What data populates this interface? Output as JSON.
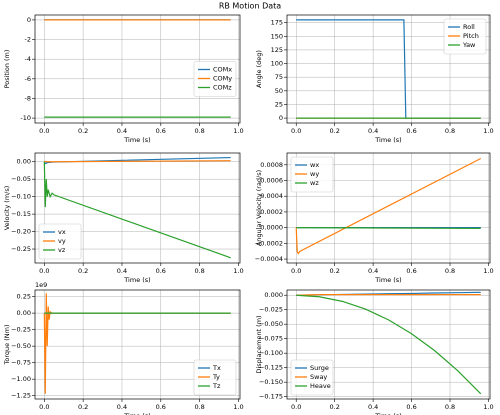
{
  "title": "RB Motion Data",
  "chart_data": [
    {
      "type": "line",
      "xlabel": "Time (s)",
      "ylabel": "Position (m)",
      "grid": true,
      "legend": "center right",
      "xlim": [
        -0.048,
        1.008
      ],
      "xticks": [
        {
          "value": 0,
          "label": "0.0"
        },
        0.2,
        0.4,
        0.6,
        0.8,
        {
          "value": 1,
          "label": "1.0"
        }
      ],
      "ylim": [
        -10.5,
        0.5
      ],
      "yticks": [
        -10,
        -8,
        -6,
        -4,
        -2,
        0
      ],
      "x": [
        0,
        0.96
      ],
      "series": [
        {
          "name": "COMx",
          "color": "#1f77b4",
          "values": [
            0,
            0
          ]
        },
        {
          "name": "COMy",
          "color": "#ff7f0e",
          "values": [
            0,
            0
          ]
        },
        {
          "name": "COMz",
          "color": "#2ca02c",
          "values": [
            -9.9,
            -9.9
          ]
        }
      ]
    },
    {
      "type": "line",
      "xlabel": "Time (s)",
      "ylabel": "Angle (deg)",
      "grid": true,
      "legend": "upper right",
      "xlim": [
        -0.048,
        1.008
      ],
      "xticks": [
        {
          "value": 0,
          "label": "0.0"
        },
        0.2,
        0.4,
        0.6,
        0.8,
        {
          "value": 1,
          "label": "1.0"
        }
      ],
      "ylim": [
        -9,
        189
      ],
      "yticks": [
        0,
        25,
        50,
        75,
        100,
        125,
        150,
        175
      ],
      "x": [
        0,
        0.56,
        0.57,
        0.96
      ],
      "series": [
        {
          "name": "Roll",
          "color": "#1f77b4",
          "values": [
            180,
            180,
            0,
            0
          ]
        },
        {
          "name": "Pitch",
          "color": "#ff7f0e",
          "values": [
            0,
            0,
            0,
            0
          ]
        },
        {
          "name": "Yaw",
          "color": "#2ca02c",
          "values": [
            0,
            0,
            0,
            0
          ]
        }
      ]
    },
    {
      "type": "line",
      "xlabel": "Time (s)",
      "ylabel": "Velocity (m/s)",
      "grid": true,
      "legend": "lower left",
      "xlim": [
        -0.048,
        1.008
      ],
      "xticks": [
        {
          "value": 0,
          "label": "0.0"
        },
        0.2,
        0.4,
        0.6,
        0.8,
        {
          "value": 1,
          "label": "1.0"
        }
      ],
      "ylim": [
        -0.29,
        0.025
      ],
      "yticks": [
        {
          "value": -0.25,
          "label": "−0.25"
        },
        {
          "value": -0.2,
          "label": "−0.20"
        },
        {
          "value": -0.15,
          "label": "−0.15"
        },
        {
          "value": -0.1,
          "label": "−0.10"
        },
        {
          "value": -0.05,
          "label": "−0.05"
        },
        {
          "value": 0,
          "label": "0.00"
        }
      ],
      "x": [
        0,
        0.005,
        0.01,
        0.015,
        0.02,
        0.03,
        0.04,
        0.05,
        0.96
      ],
      "series": [
        {
          "name": "vx",
          "color": "#1f77b4",
          "values": [
            0,
            -0.005,
            -0.004,
            -0.003,
            -0.002,
            -0.002,
            -0.001,
            -0.001,
            0.012
          ]
        },
        {
          "name": "vy",
          "color": "#ff7f0e",
          "values": [
            0,
            0.001,
            0,
            0,
            0,
            0,
            0,
            0,
            0.003
          ]
        },
        {
          "name": "vz",
          "color": "#2ca02c",
          "values": [
            0,
            -0.13,
            -0.05,
            -0.1,
            -0.08,
            -0.1,
            -0.09,
            -0.095,
            -0.275
          ]
        }
      ]
    },
    {
      "type": "line",
      "xlabel": "Time (s)",
      "ylabel": "Angular Velocity (rad/s)",
      "grid": true,
      "legend": "upper left",
      "xlim": [
        -0.048,
        1.008
      ],
      "xticks": [
        {
          "value": 0,
          "label": "0.0"
        },
        0.2,
        0.4,
        0.6,
        0.8,
        {
          "value": 1,
          "label": "1.0"
        }
      ],
      "ylim": [
        -0.00045,
        0.00095
      ],
      "yticks": [
        {
          "value": -0.0004,
          "label": "−0.0004"
        },
        {
          "value": -0.0002,
          "label": "−0.0002"
        },
        {
          "value": 0,
          "label": "0.0000"
        },
        0.0002,
        0.0004,
        0.0006,
        0.0008
      ],
      "x": [
        0,
        0.005,
        0.01,
        0.02,
        0.96
      ],
      "series": [
        {
          "name": "wx",
          "color": "#1f77b4",
          "values": [
            0,
            0,
            0,
            0,
            0
          ]
        },
        {
          "name": "wy",
          "color": "#ff7f0e",
          "values": [
            0,
            -0.0003,
            -0.00033,
            -0.0003,
            0.00088
          ]
        },
        {
          "name": "wz",
          "color": "#2ca02c",
          "values": [
            0,
            0,
            0,
            0,
            -1e-05
          ]
        }
      ]
    },
    {
      "type": "line",
      "xlabel": "Time (s)",
      "ylabel": "Torque (Nm)",
      "offset_label": "1e9",
      "grid": true,
      "legend": "lower right",
      "xlim": [
        -0.048,
        1.008
      ],
      "xticks": [
        {
          "value": 0,
          "label": "0.0"
        },
        0.2,
        0.4,
        0.6,
        0.8,
        {
          "value": 1,
          "label": "1.0"
        }
      ],
      "ylim": [
        -1.3,
        0.35
      ],
      "yticks": [
        {
          "value": -1.25,
          "label": "−1.25"
        },
        {
          "value": -1,
          "label": "−1.00"
        },
        {
          "value": -0.75,
          "label": "−0.75"
        },
        {
          "value": -0.5,
          "label": "−0.50"
        },
        {
          "value": -0.25,
          "label": "−0.25"
        },
        {
          "value": 0,
          "label": "0.00"
        },
        0.25
      ],
      "x": [
        0,
        0.005,
        0.01,
        0.015,
        0.02,
        0.025,
        0.03,
        0.04,
        0.96
      ],
      "series": [
        {
          "name": "Tx",
          "color": "#1f77b4",
          "values": [
            0,
            0,
            0,
            0,
            0,
            0,
            0,
            0,
            0
          ]
        },
        {
          "name": "Ty",
          "color": "#ff7f0e",
          "values": [
            0,
            -1.22,
            0.3,
            -0.5,
            0.1,
            -0.1,
            0.02,
            0,
            0
          ]
        },
        {
          "name": "Tz",
          "color": "#2ca02c",
          "values": [
            0,
            0,
            0,
            0,
            0,
            0,
            0,
            0,
            0
          ]
        }
      ]
    },
    {
      "type": "line",
      "xlabel": "Time (s)",
      "ylabel": "Displacement (m)",
      "grid": true,
      "legend": "lower left",
      "xlim": [
        -0.048,
        1.008
      ],
      "xticks": [
        {
          "value": 0,
          "label": "0.0"
        },
        0.2,
        0.4,
        0.6,
        0.8,
        {
          "value": 1,
          "label": "1.0"
        }
      ],
      "ylim": [
        -0.179,
        0.009
      ],
      "yticks": [
        {
          "value": -0.175,
          "label": "−0.175"
        },
        {
          "value": -0.15,
          "label": "−0.150"
        },
        {
          "value": -0.125,
          "label": "−0.125"
        },
        {
          "value": -0.1,
          "label": "−0.100"
        },
        {
          "value": -0.075,
          "label": "−0.075"
        },
        {
          "value": -0.05,
          "label": "−0.050"
        },
        {
          "value": -0.025,
          "label": "−0.025"
        },
        {
          "value": 0,
          "label": "0.000"
        }
      ],
      "x": [
        0,
        0.12,
        0.24,
        0.36,
        0.48,
        0.6,
        0.72,
        0.84,
        0.96
      ],
      "series": [
        {
          "name": "Surge",
          "color": "#1f77b4",
          "values": [
            0,
            0.0006,
            0.0013,
            0.0019,
            0.0025,
            0.0031,
            0.0038,
            0.0044,
            0.005
          ]
        },
        {
          "name": "Sway",
          "color": "#ff7f0e",
          "values": [
            0,
            0.001,
            0.001,
            0.001,
            0.001,
            0.001,
            0.001,
            0.001,
            0.001
          ]
        },
        {
          "name": "Heave",
          "color": "#2ca02c",
          "values": [
            0,
            -0.0027,
            -0.0106,
            -0.0239,
            -0.0425,
            -0.0664,
            -0.0956,
            -0.1302,
            -0.17
          ]
        }
      ]
    }
  ]
}
